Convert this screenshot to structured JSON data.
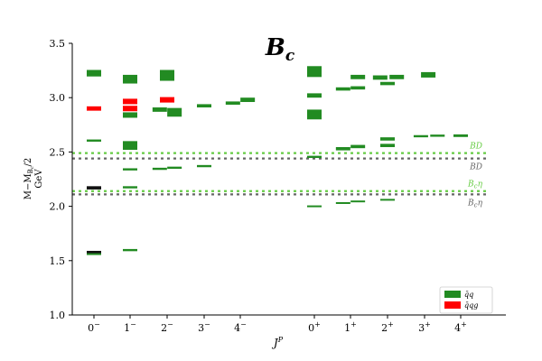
{
  "chart_data": {
    "type": "spectrum",
    "title": "B",
    "title_subscript": "c",
    "xlabel": "J",
    "xlabel_superscript": "P",
    "ylabel_line1": "M−M",
    "ylabel_sub": "B",
    "ylabel_sub2": "c",
    "ylabel_tail": "/2",
    "ylabel_line2": "GeV",
    "ylim": [
      1.0,
      3.5
    ],
    "yticks": [
      "1.0",
      "1.5",
      "2.0",
      "2.5",
      "3.0",
      "3.5"
    ],
    "categories": [
      {
        "base": "0",
        "sup": "−"
      },
      {
        "base": "1",
        "sup": "−"
      },
      {
        "base": "2",
        "sup": "−"
      },
      {
        "base": "3",
        "sup": "−"
      },
      {
        "base": "4",
        "sup": "−"
      },
      {
        "base": "0",
        "sup": "+"
      },
      {
        "base": "1",
        "sup": "+"
      },
      {
        "base": "2",
        "sup": "+"
      },
      {
        "base": "3",
        "sup": "+"
      },
      {
        "base": "4",
        "sup": "+"
      }
    ],
    "colors": {
      "qq": "#228b22",
      "qqg": "#ff0000",
      "dark": "#111111",
      "threshold_light": "#66cc44",
      "threshold_dark": "#666666"
    },
    "thresholds": [
      {
        "label": "BD",
        "value": 2.49,
        "color": "threshold_light"
      },
      {
        "label": "BD",
        "value": 2.44,
        "color": "threshold_dark"
      },
      {
        "label": "B",
        "label_sub": "c",
        "label_tail": "η",
        "value": 2.14,
        "color": "threshold_light"
      },
      {
        "label": "B",
        "label_sub": "c",
        "label_tail": "η",
        "value": 2.11,
        "color": "threshold_dark"
      }
    ],
    "legend": [
      {
        "label": "q̄q",
        "key": "qq"
      },
      {
        "label": "q̄qg",
        "key": "qqg"
      }
    ],
    "legend_position": "lower-right",
    "levels": [
      {
        "cat": 0,
        "center": 3.225,
        "err": 0.03,
        "offset": 0,
        "type": "qq"
      },
      {
        "cat": 0,
        "center": 2.605,
        "err": 0.01,
        "offset": 0,
        "type": "qq"
      },
      {
        "cat": 0,
        "center": 2.17,
        "err": 0.015,
        "offset": 0,
        "type": "dark"
      },
      {
        "cat": 0,
        "center": 1.578,
        "err": 0.012,
        "offset": 0,
        "type": "dark"
      },
      {
        "cat": 0,
        "center": 1.56,
        "err": 0.008,
        "offset": 0,
        "type": "qq"
      },
      {
        "cat": 0,
        "center": 2.9,
        "err": 0.02,
        "offset": 0,
        "type": "qqg"
      },
      {
        "cat": 1,
        "center": 3.17,
        "err": 0.04,
        "offset": 0,
        "type": "qq"
      },
      {
        "cat": 1,
        "center": 2.84,
        "err": 0.025,
        "offset": 0,
        "type": "qq"
      },
      {
        "cat": 1,
        "center": 2.56,
        "err": 0.04,
        "offset": 0,
        "type": "qq"
      },
      {
        "cat": 1,
        "center": 2.34,
        "err": 0.01,
        "offset": 0,
        "type": "qq"
      },
      {
        "cat": 1,
        "center": 2.175,
        "err": 0.01,
        "offset": 0,
        "type": "qq"
      },
      {
        "cat": 1,
        "center": 1.597,
        "err": 0.01,
        "offset": 0,
        "type": "qq"
      },
      {
        "cat": 1,
        "center": 2.965,
        "err": 0.025,
        "offset": 0,
        "type": "qqg"
      },
      {
        "cat": 1,
        "center": 2.9,
        "err": 0.025,
        "offset": 0,
        "type": "qqg"
      },
      {
        "cat": 2,
        "center": 3.205,
        "err": 0.05,
        "offset": 0,
        "type": "qq"
      },
      {
        "cat": 2,
        "center": 2.89,
        "err": 0.02,
        "offset": -0.2,
        "type": "qq"
      },
      {
        "cat": 2,
        "center": 2.865,
        "err": 0.04,
        "offset": 0.2,
        "type": "qq"
      },
      {
        "cat": 2,
        "center": 2.345,
        "err": 0.01,
        "offset": -0.2,
        "type": "qq"
      },
      {
        "cat": 2,
        "center": 2.355,
        "err": 0.01,
        "offset": 0.2,
        "type": "qq"
      },
      {
        "cat": 2,
        "center": 2.98,
        "err": 0.025,
        "offset": 0,
        "type": "qqg"
      },
      {
        "cat": 3,
        "center": 2.925,
        "err": 0.015,
        "offset": 0,
        "type": "qq"
      },
      {
        "cat": 3,
        "center": 2.37,
        "err": 0.01,
        "offset": 0,
        "type": "qq"
      },
      {
        "cat": 4,
        "center": 2.95,
        "err": 0.015,
        "offset": -0.2,
        "type": "qq"
      },
      {
        "cat": 4,
        "center": 2.98,
        "err": 0.02,
        "offset": 0.2,
        "type": "qq"
      },
      {
        "cat": 5,
        "center": 3.24,
        "err": 0.05,
        "offset": 0,
        "type": "qq"
      },
      {
        "cat": 5,
        "center": 3.02,
        "err": 0.02,
        "offset": 0,
        "type": "qq"
      },
      {
        "cat": 5,
        "center": 2.845,
        "err": 0.045,
        "offset": 0,
        "type": "qq"
      },
      {
        "cat": 5,
        "center": 2.455,
        "err": 0.01,
        "offset": 0,
        "type": "qq"
      },
      {
        "cat": 5,
        "center": 2.0,
        "err": 0.008,
        "offset": 0,
        "type": "qq"
      },
      {
        "cat": 6,
        "center": 3.08,
        "err": 0.015,
        "offset": -0.2,
        "type": "qq"
      },
      {
        "cat": 6,
        "center": 3.19,
        "err": 0.02,
        "offset": 0.2,
        "type": "qq"
      },
      {
        "cat": 6,
        "center": 3.09,
        "err": 0.015,
        "offset": 0.2,
        "type": "qq"
      },
      {
        "cat": 6,
        "center": 2.53,
        "err": 0.015,
        "offset": -0.2,
        "type": "qq"
      },
      {
        "cat": 6,
        "center": 2.55,
        "err": 0.015,
        "offset": 0.2,
        "type": "qq"
      },
      {
        "cat": 6,
        "center": 2.03,
        "err": 0.008,
        "offset": -0.2,
        "type": "qq"
      },
      {
        "cat": 6,
        "center": 2.045,
        "err": 0.008,
        "offset": 0.2,
        "type": "qq"
      },
      {
        "cat": 7,
        "center": 3.185,
        "err": 0.02,
        "offset": -0.2,
        "type": "qq"
      },
      {
        "cat": 7,
        "center": 3.13,
        "err": 0.015,
        "offset": 0,
        "type": "qq"
      },
      {
        "cat": 7,
        "center": 3.19,
        "err": 0.02,
        "offset": 0.25,
        "type": "qq"
      },
      {
        "cat": 7,
        "center": 2.62,
        "err": 0.015,
        "offset": 0,
        "type": "qq"
      },
      {
        "cat": 7,
        "center": 2.56,
        "err": 0.015,
        "offset": 0,
        "type": "qq"
      },
      {
        "cat": 7,
        "center": 2.06,
        "err": 0.008,
        "offset": 0,
        "type": "qq"
      },
      {
        "cat": 8,
        "center": 3.21,
        "err": 0.025,
        "offset": 0.1,
        "type": "qq"
      },
      {
        "cat": 8,
        "center": 2.645,
        "err": 0.01,
        "offset": -0.1,
        "type": "qq"
      },
      {
        "cat": 8,
        "center": 2.65,
        "err": 0.01,
        "offset": 0.35,
        "type": "qq"
      },
      {
        "cat": 9,
        "center": 2.65,
        "err": 0.012,
        "offset": 0,
        "type": "qq"
      }
    ]
  }
}
